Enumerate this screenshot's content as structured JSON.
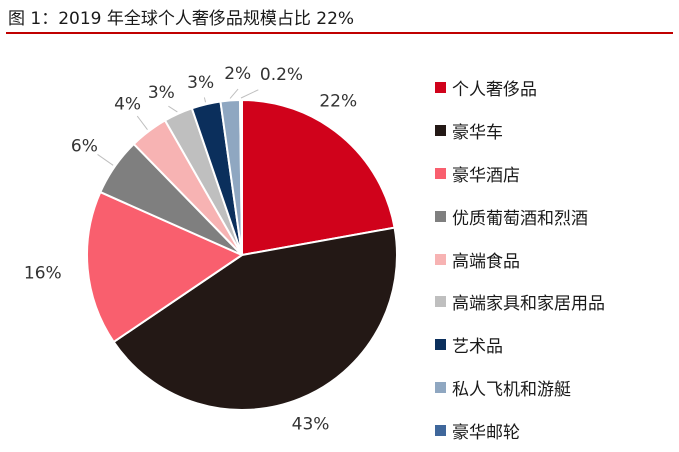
{
  "title": "图 1：2019 年全球个人奢侈品规模占比 22%",
  "chart_data": {
    "type": "pie",
    "title": "图 1：2019 年全球个人奢侈品规模占比 22%",
    "legend_position": "right",
    "slices": [
      {
        "label": "个人奢侈品",
        "value": 22,
        "value_label": "22%",
        "color": "#d0021b"
      },
      {
        "label": "豪华车",
        "value": 43,
        "value_label": "43%",
        "color": "#231815"
      },
      {
        "label": "豪华酒店",
        "value": 16,
        "value_label": "16%",
        "color": "#f95f6e"
      },
      {
        "label": "优质葡萄酒和烈酒",
        "value": 6,
        "value_label": "6%",
        "color": "#7f7f7f"
      },
      {
        "label": "高端食品",
        "value": 4,
        "value_label": "4%",
        "color": "#f7b3b3"
      },
      {
        "label": "高端家具和家居用品",
        "value": 3,
        "value_label": "3%",
        "color": "#bfbfbf"
      },
      {
        "label": "艺术品",
        "value": 3,
        "value_label": "3%",
        "color": "#0b2f5c"
      },
      {
        "label": "私人飞机和游艇",
        "value": 2,
        "value_label": "2%",
        "color": "#8fa7c1"
      },
      {
        "label": "豪华邮轮",
        "value": 0.2,
        "value_label": "0.2%",
        "color": "#3f679b"
      }
    ]
  }
}
